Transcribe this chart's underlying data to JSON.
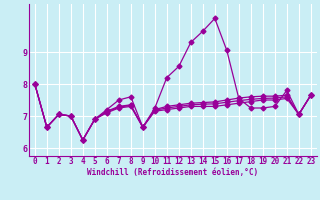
{
  "xlabel": "Windchill (Refroidissement éolien,°C)",
  "bg_color": "#caeef5",
  "line_color": "#990099",
  "grid_color": "#ffffff",
  "x": [
    0,
    1,
    2,
    3,
    4,
    5,
    6,
    7,
    8,
    9,
    10,
    11,
    12,
    13,
    14,
    15,
    16,
    17,
    18,
    19,
    20,
    21,
    22,
    23
  ],
  "y_main": [
    8.0,
    6.65,
    7.05,
    7.0,
    6.25,
    6.9,
    7.2,
    7.5,
    7.6,
    6.65,
    7.25,
    8.2,
    8.55,
    9.3,
    9.65,
    10.05,
    9.05,
    7.55,
    7.25,
    7.25,
    7.3,
    7.8,
    7.05,
    7.65
  ],
  "y_flat1": [
    8.0,
    6.65,
    7.05,
    7.0,
    6.25,
    6.9,
    7.1,
    7.25,
    7.3,
    6.65,
    7.15,
    7.2,
    7.25,
    7.3,
    7.3,
    7.3,
    7.35,
    7.4,
    7.45,
    7.5,
    7.5,
    7.55,
    7.05,
    7.65
  ],
  "y_flat2": [
    8.0,
    6.65,
    7.05,
    7.0,
    6.25,
    6.9,
    7.15,
    7.3,
    7.35,
    6.65,
    7.2,
    7.3,
    7.35,
    7.4,
    7.42,
    7.44,
    7.5,
    7.56,
    7.6,
    7.62,
    7.62,
    7.65,
    7.05,
    7.65
  ],
  "y_flat3": [
    8.0,
    6.65,
    7.05,
    7.0,
    6.25,
    6.9,
    7.12,
    7.28,
    7.33,
    6.65,
    7.18,
    7.25,
    7.3,
    7.35,
    7.37,
    7.38,
    7.43,
    7.48,
    7.52,
    7.55,
    7.56,
    7.6,
    7.05,
    7.65
  ],
  "ylim": [
    5.75,
    10.5
  ],
  "yticks": [
    6,
    7,
    8,
    9
  ],
  "xticks": [
    0,
    1,
    2,
    3,
    4,
    5,
    6,
    7,
    8,
    9,
    10,
    11,
    12,
    13,
    14,
    15,
    16,
    17,
    18,
    19,
    20,
    21,
    22,
    23
  ],
  "tick_fontsize": 5.5,
  "xlabel_fontsize": 5.5,
  "marker_size": 2.5,
  "line_width": 0.9
}
